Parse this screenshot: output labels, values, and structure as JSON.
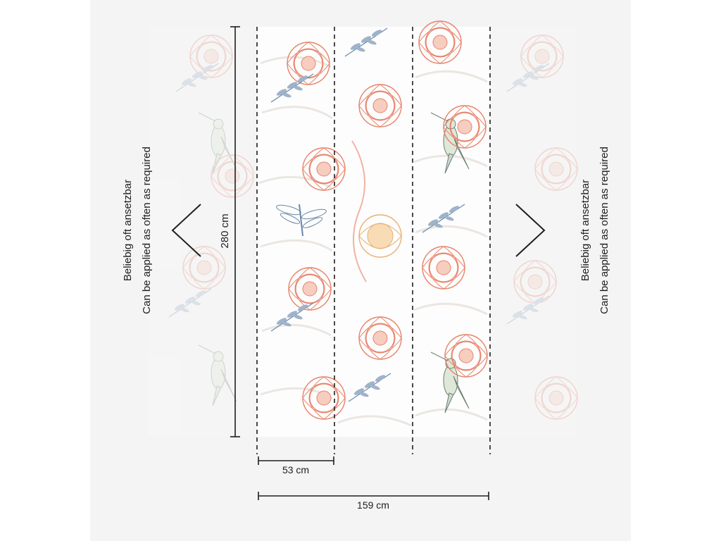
{
  "dimensions": {
    "height_label": "280 cm",
    "panel_width_label": "53 cm",
    "total_width_label": "159 cm"
  },
  "left_note": {
    "line1": "Beliebig oft ansetzbar",
    "line2": "Can be applied as often as required"
  },
  "right_note": {
    "line1": "Beliebig oft ansetzbar",
    "line2": "Can be applied as often as required"
  },
  "colors": {
    "background": "#f4f4f4",
    "coral": "#e8826a",
    "blue": "#6a86a8",
    "mustard": "#e8b070",
    "lines": "#1e1e1e"
  }
}
